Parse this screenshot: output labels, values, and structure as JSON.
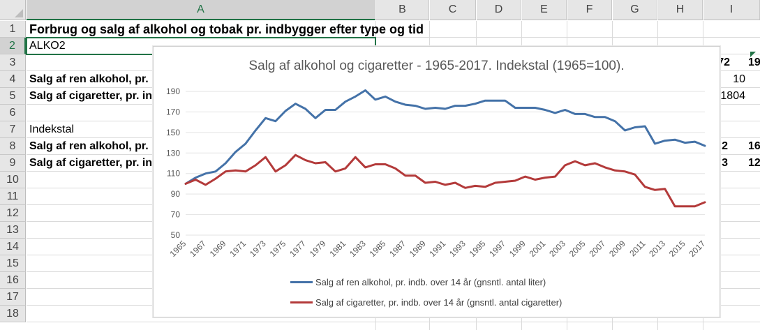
{
  "columns": [
    "A",
    "B",
    "C",
    "D",
    "E",
    "F",
    "G",
    "H",
    "I"
  ],
  "selected_column": "A",
  "rows": [
    "1",
    "2",
    "3",
    "4",
    "5",
    "6",
    "7",
    "8",
    "9",
    "10",
    "11",
    "12",
    "13",
    "14",
    "15",
    "16",
    "17",
    "18"
  ],
  "selected_row": "2",
  "cells": {
    "a1": "Forbrug og salg af alkohol og tobak pr. indbygger efter type og tid",
    "a2": "ALKO2",
    "a4": "Salg af ren alkohol, pr. i",
    "a5": "Salg af cigaretter, pr. in",
    "a7": "Indekstal",
    "a8": "Salg af ren alkohol, pr. i",
    "a9": "Salg af cigaretter, pr. in",
    "h3": "72",
    "i3": "19",
    "i4": "10",
    "i5": "1804",
    "h8": "2",
    "i8": "16",
    "h9": "3",
    "i9": "12"
  },
  "colors": {
    "accent": "#217346",
    "series_blue": "#4472a8",
    "series_red": "#b33a3a"
  },
  "chart_data": {
    "type": "line",
    "title": "Salg af alkohol og cigaretter - 1965-2017. Indekstal (1965=100).",
    "xlabel": "",
    "ylabel": "",
    "ylim": [
      50,
      190
    ],
    "yticks": [
      50,
      70,
      90,
      110,
      130,
      150,
      170,
      190
    ],
    "xtick_labels": [
      "1965",
      "1967",
      "1969",
      "1971",
      "1973",
      "1975",
      "1977",
      "1979",
      "1981",
      "1983",
      "1985",
      "1987",
      "1989",
      "1991",
      "1993",
      "1995",
      "1997",
      "1999",
      "2001",
      "2003",
      "2005",
      "2007",
      "2009",
      "2011",
      "2013",
      "2015",
      "2017"
    ],
    "grid": true,
    "legend_position": "bottom",
    "x": [
      1965,
      1966,
      1967,
      1968,
      1969,
      1970,
      1971,
      1972,
      1973,
      1974,
      1975,
      1976,
      1977,
      1978,
      1979,
      1980,
      1981,
      1982,
      1983,
      1984,
      1985,
      1986,
      1987,
      1988,
      1989,
      1990,
      1991,
      1992,
      1993,
      1994,
      1995,
      1996,
      1997,
      1998,
      1999,
      2000,
      2001,
      2002,
      2003,
      2004,
      2005,
      2006,
      2007,
      2008,
      2009,
      2010,
      2011,
      2012,
      2013,
      2014,
      2015,
      2016,
      2017
    ],
    "series": [
      {
        "name": "Salg af ren alkohol, pr. indb. over 14 år (gnsntl. antal liter)",
        "color": "#4472a8",
        "values": [
          100,
          106,
          110,
          112,
          120,
          131,
          139,
          152,
          164,
          161,
          171,
          178,
          173,
          164,
          172,
          172,
          180,
          185,
          191,
          182,
          185,
          180,
          177,
          176,
          173,
          174,
          173,
          176,
          176,
          178,
          181,
          181,
          181,
          174,
          174,
          174,
          172,
          169,
          172,
          168,
          168,
          165,
          165,
          161,
          152,
          155,
          156,
          139,
          142,
          143,
          140,
          141,
          137
        ]
      },
      {
        "name": "Salg af cigaretter, pr. indb. over 14 år (gnsntl. antal cigaretter)",
        "color": "#b33a3a",
        "values": [
          100,
          104,
          99,
          105,
          112,
          113,
          112,
          118,
          126,
          112,
          118,
          128,
          123,
          120,
          121,
          112,
          115,
          126,
          116,
          119,
          119,
          115,
          108,
          108,
          101,
          102,
          99,
          101,
          96,
          98,
          97,
          101,
          102,
          103,
          107,
          104,
          106,
          107,
          118,
          122,
          118,
          120,
          116,
          113,
          112,
          109,
          97,
          94,
          95,
          78,
          78,
          78,
          82
        ]
      }
    ]
  }
}
